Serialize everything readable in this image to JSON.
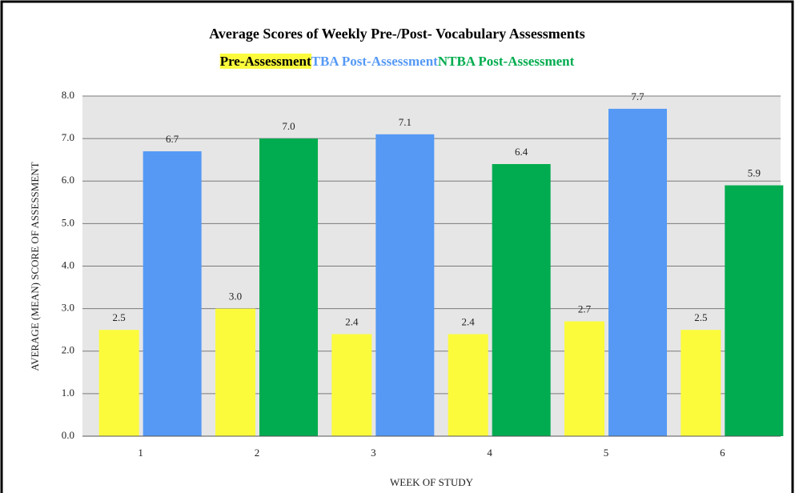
{
  "chart_data": {
    "type": "bar",
    "title": "Average Scores of Weekly Pre-/Post- Vocabulary Assessments",
    "x_label": "WEEK OF STUDY",
    "y_label": "AVERAGE (MEAN) SCORE OF ASSESSMENT",
    "categories": [
      "1",
      "2",
      "3",
      "4",
      "5",
      "6"
    ],
    "series": [
      {
        "name": "Pre-Assessment",
        "color": "#fbfb3c",
        "values": [
          2.5,
          3.0,
          2.4,
          2.4,
          2.7,
          2.5
        ],
        "value_labels": [
          "2.5",
          "3.0",
          "2.4",
          "2.4",
          "2.7",
          "2.5"
        ]
      },
      {
        "name": "TBA Post-Assessment",
        "color": "#5599f5",
        "values": [
          6.7,
          null,
          7.1,
          null,
          7.7,
          null
        ],
        "value_labels": [
          "6.7",
          null,
          "7.1",
          null,
          "7.7",
          null
        ]
      },
      {
        "name": "NTBA Post-Assessment",
        "color": "#00ac4f",
        "values": [
          null,
          7.0,
          null,
          6.4,
          null,
          5.9
        ],
        "value_labels": [
          null,
          "7.0",
          null,
          "6.4",
          null,
          "5.9"
        ]
      }
    ],
    "ylim": [
      0,
      8
    ],
    "yticks": [
      {
        "value": 0,
        "label": "0.0"
      },
      {
        "value": 1,
        "label": "1.0"
      },
      {
        "value": 2,
        "label": "2.0"
      },
      {
        "value": 3,
        "label": "3.0"
      },
      {
        "value": 4,
        "label": "4.0"
      },
      {
        "value": 5,
        "label": "5.0"
      },
      {
        "value": 6,
        "label": "6.0"
      },
      {
        "value": 7,
        "label": "7.0"
      },
      {
        "value": 8,
        "label": "8.0"
      }
    ],
    "grid": true
  }
}
